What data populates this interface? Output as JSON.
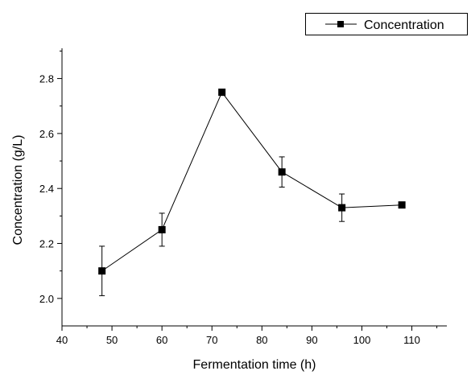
{
  "chart_data": {
    "type": "line",
    "title": "",
    "xlabel": "Fermentation time (h)",
    "ylabel": "Concentration (g/L)",
    "xlim": [
      40,
      117
    ],
    "ylim": [
      1.9,
      2.91
    ],
    "x_ticks": [
      40,
      50,
      60,
      70,
      80,
      90,
      100,
      110
    ],
    "y_ticks": [
      2.0,
      2.2,
      2.4,
      2.6,
      2.8
    ],
    "y_tick_labels": [
      "2.0",
      "2.2",
      "2.4",
      "2.6",
      "2.8"
    ],
    "grid": false,
    "legend_position": "top-right",
    "series": [
      {
        "name": "Concentration",
        "color": "#000000",
        "marker": "square",
        "x": [
          48,
          60,
          72,
          84,
          96,
          108
        ],
        "y": [
          2.1,
          2.25,
          2.75,
          2.46,
          2.33,
          2.34
        ],
        "error": [
          0.09,
          0.06,
          0.01,
          0.055,
          0.05,
          0.01
        ]
      }
    ]
  }
}
